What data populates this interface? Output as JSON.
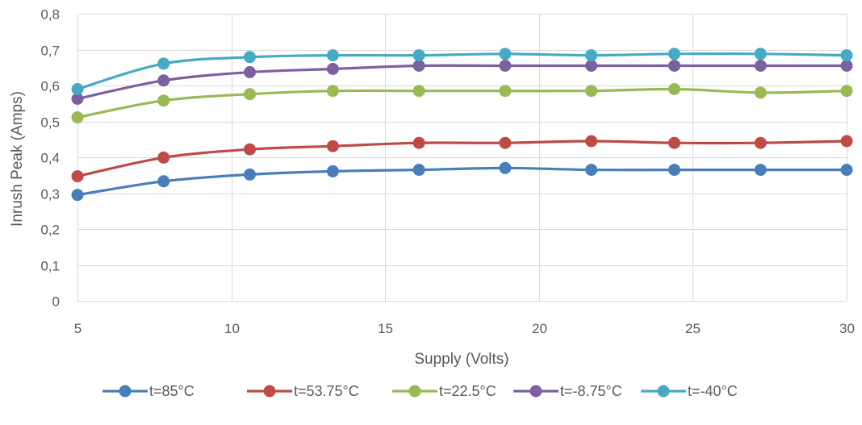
{
  "chart_data": {
    "type": "line",
    "title": "",
    "xlabel": "Supply (Volts)",
    "ylabel": "Inrush Peak (Amps)",
    "xlim": [
      5,
      30
    ],
    "ylim": [
      0,
      0.8
    ],
    "xticks": [
      5,
      10,
      15,
      20,
      25,
      30
    ],
    "xtick_labels": [
      "5",
      "10",
      "15",
      "20",
      "25",
      "30"
    ],
    "yticks": [
      0,
      0.1,
      0.2,
      0.3,
      0.4,
      0.5,
      0.6,
      0.7,
      0.8
    ],
    "ytick_labels": [
      "0",
      "0,1",
      "0,2",
      "0,3",
      "0,4",
      "0,5",
      "0,6",
      "0,7",
      "0,8"
    ],
    "grid": true,
    "smooth": true,
    "legend_position": "bottom",
    "x": [
      5,
      7.8,
      10.6,
      13.3,
      16.1,
      18.9,
      21.7,
      24.4,
      27.2,
      30
    ],
    "series": [
      {
        "name": "t=85°C",
        "color": "#4a7ebb",
        "values": [
          0.295,
          0.333,
          0.352,
          0.361,
          0.365,
          0.37,
          0.365,
          0.365,
          0.365,
          0.365
        ]
      },
      {
        "name": "t=53.75°C",
        "color": "#be4b48",
        "values": [
          0.347,
          0.399,
          0.422,
          0.431,
          0.44,
          0.44,
          0.445,
          0.44,
          0.44,
          0.445
        ]
      },
      {
        "name": "t=22.5°C",
        "color": "#98b954",
        "values": [
          0.511,
          0.558,
          0.576,
          0.585,
          0.585,
          0.585,
          0.585,
          0.59,
          0.58,
          0.585
        ]
      },
      {
        "name": "t=-8.75°C",
        "color": "#7d60a0",
        "values": [
          0.563,
          0.614,
          0.637,
          0.646,
          0.655,
          0.655,
          0.655,
          0.655,
          0.655,
          0.655
        ]
      },
      {
        "name": "t=-40°C",
        "color": "#46aac5",
        "values": [
          0.59,
          0.661,
          0.679,
          0.684,
          0.684,
          0.688,
          0.684,
          0.688,
          0.688,
          0.684
        ]
      }
    ]
  }
}
